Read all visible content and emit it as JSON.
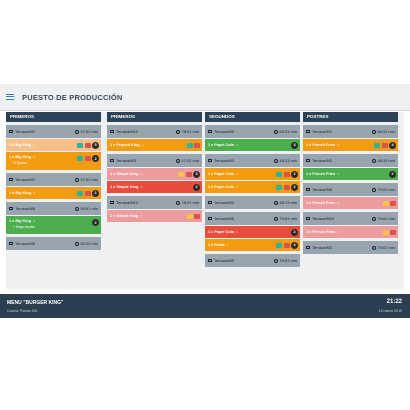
{
  "header": {
    "title": "PUESTO DE PRODUCCIÓN"
  },
  "colors": {
    "topbar": "#eef0f2",
    "column_header": "#2e4257",
    "footer": "#2c3e50",
    "orange": "#f39c12",
    "peach": "#f7c08a",
    "green": "#4cae4c",
    "pink": "#ec9c9f",
    "red": "#e74c3c"
  },
  "columns": [
    {
      "label": "PRIMEROS",
      "orders": [
        {
          "table": "Terraza/M1",
          "time": "47:01 min",
          "items": [
            {
              "text": "1 x Big King",
              "status": "peach",
              "controls": [
                "teal",
                "red"
              ],
              "qty": "5",
              "sub": ""
            },
            {
              "text": "1 x Big King",
              "status": "orange",
              "controls": [
                "teal",
                "red"
              ],
              "qty": "2",
              "sub": "½ Queso"
            }
          ]
        },
        {
          "table": "Terraza/M2",
          "time": "47:01 min",
          "items": [
            {
              "text": "1 x Big King",
              "status": "orange",
              "controls": [
                "teal",
                "red"
              ],
              "qty": "2",
              "sub": ""
            }
          ]
        },
        {
          "table": "Terraza/M8",
          "time": "39:51 min",
          "items": [
            {
              "text": "1 x Big King",
              "status": "green",
              "controls": [],
              "qty": "2",
              "sub": "+ Mayo burder"
            }
          ]
        },
        {
          "table": "Terraza/M6",
          "time": "30:12 min",
          "items": []
        }
      ]
    },
    {
      "label": "PRIMEROS",
      "orders": [
        {
          "table": "Terraza/M10",
          "time": "78:51 min",
          "items": [
            {
              "text": "1 x Pequeb King",
              "status": "orange",
              "controls": [
                "teal",
                "red"
              ],
              "qty": "",
              "sub": ""
            }
          ]
        },
        {
          "table": "Terraza/M3",
          "time": "47:01 min",
          "items": [
            {
              "text": "1 x Simple King",
              "status": "pink",
              "controls": [
                "play",
                "red"
              ],
              "qty": "3",
              "sub": ""
            },
            {
              "text": "1 x Simple King",
              "status": "red",
              "controls": [],
              "qty": "2",
              "sub": ""
            }
          ]
        },
        {
          "table": "Terraza/M12",
          "time": "78:51 min",
          "items": [
            {
              "text": "1 x Simple King",
              "status": "pink",
              "controls": [
                "play",
                "red"
              ],
              "qty": "",
              "sub": ""
            }
          ]
        }
      ]
    },
    {
      "label": "SEGUNDOS",
      "orders": [
        {
          "table": "Terraza/M5",
          "time": "60:21 min",
          "items": [
            {
              "text": "1 x Papel Cola",
              "status": "green",
              "controls": [],
              "qty": "3",
              "sub": ""
            }
          ]
        },
        {
          "table": "Terraza/M3",
          "time": "48:13 min",
          "items": [
            {
              "text": "1 x Papel Cola",
              "status": "orange",
              "controls": [
                "teal",
                "red"
              ],
              "qty": "2",
              "sub": ""
            },
            {
              "text": "1 x Papel Cola",
              "status": "orange",
              "controls": [
                "teal",
                "red"
              ],
              "qty": "2",
              "sub": ""
            }
          ]
        },
        {
          "table": "Terraza/M2",
          "time": "48:13 min",
          "items": []
        },
        {
          "table": "Terraza/M8",
          "time": "79:61 min",
          "items": [
            {
              "text": "1 x Papel Cola",
              "status": "red",
              "controls": [],
              "qty": "2",
              "sub": ""
            },
            {
              "text": "1 x Fanta",
              "status": "orange",
              "controls": [
                "teal",
                "red"
              ],
              "qty": "4",
              "sub": ""
            }
          ]
        },
        {
          "table": "Terraza/M9",
          "time": "79:61 min",
          "items": []
        }
      ]
    },
    {
      "label": "POSTRES",
      "orders": [
        {
          "table": "Terraza/M1",
          "time": "48:31 min",
          "items": [
            {
              "text": "1 x French Fries",
              "status": "orange",
              "controls": [
                "teal",
                "red"
              ],
              "qty": "4",
              "sub": ""
            }
          ]
        },
        {
          "table": "Terraza/M3",
          "time": "48:31 min",
          "items": [
            {
              "text": "1 x French Fries",
              "status": "green",
              "controls": [],
              "qty": "2",
              "sub": ""
            }
          ]
        },
        {
          "table": "Terraza/M8",
          "time": "79:61 min",
          "items": [
            {
              "text": "1 x French Fries",
              "status": "pink",
              "controls": [
                "play",
                "red"
              ],
              "qty": "",
              "sub": ""
            }
          ]
        },
        {
          "table": "Terraza/M10",
          "time": "79:61 min",
          "items": [
            {
              "text": "1 x French Fries",
              "status": "pink",
              "controls": [
                "play",
                "red"
              ],
              "qty": "",
              "sub": ""
            }
          ]
        },
        {
          "table": "Terraza/M3",
          "time": "79:61 min",
          "items": []
        }
      ]
    }
  ],
  "footer": {
    "menu": "MENU \"BURGER KING\"",
    "cook": "Cocina: Puesto 001",
    "time": "21:22",
    "date": "19 marzo 2019"
  }
}
